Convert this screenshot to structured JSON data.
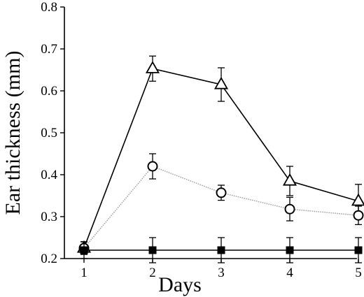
{
  "chart_data": {
    "type": "line",
    "xlabel": "Days",
    "ylabel": "Ear thickness (mm)",
    "x": [
      1,
      2,
      3,
      4,
      5
    ],
    "xlim": [
      1,
      5
    ],
    "ylim": [
      0.2,
      0.8
    ],
    "x_ticks": [
      1,
      2,
      3,
      4,
      5
    ],
    "y_ticks": [
      0.2,
      0.3,
      0.4,
      0.5,
      0.6,
      0.7,
      0.8
    ],
    "x_tick_labels": [
      "1",
      "2",
      "3",
      "4",
      "5"
    ],
    "y_tick_labels": [
      "0.2",
      "0.3",
      "0.4",
      "0.5",
      "0.6",
      "0.7",
      "0.8"
    ],
    "grid": false,
    "legend": "none",
    "series": [
      {
        "marker": "triangle-open",
        "line_color": "#000000",
        "line_style": "solid",
        "values": [
          0.225,
          0.653,
          0.615,
          0.385,
          0.337
        ],
        "errors": [
          0.015,
          0.03,
          0.04,
          0.035,
          0.04
        ]
      },
      {
        "marker": "circle-open",
        "line_color": "#999999",
        "line_style": "dotted",
        "values": [
          0.225,
          0.42,
          0.357,
          0.318,
          0.303
        ],
        "errors": [
          0.015,
          0.03,
          0.018,
          0.028,
          0.022
        ]
      },
      {
        "marker": "square-filled",
        "line_color": "#000000",
        "line_style": "solid",
        "values": [
          0.22,
          0.22,
          0.22,
          0.22,
          0.22
        ],
        "errors": [
          0.02,
          0.03,
          0.03,
          0.03,
          0.03
        ]
      }
    ]
  }
}
